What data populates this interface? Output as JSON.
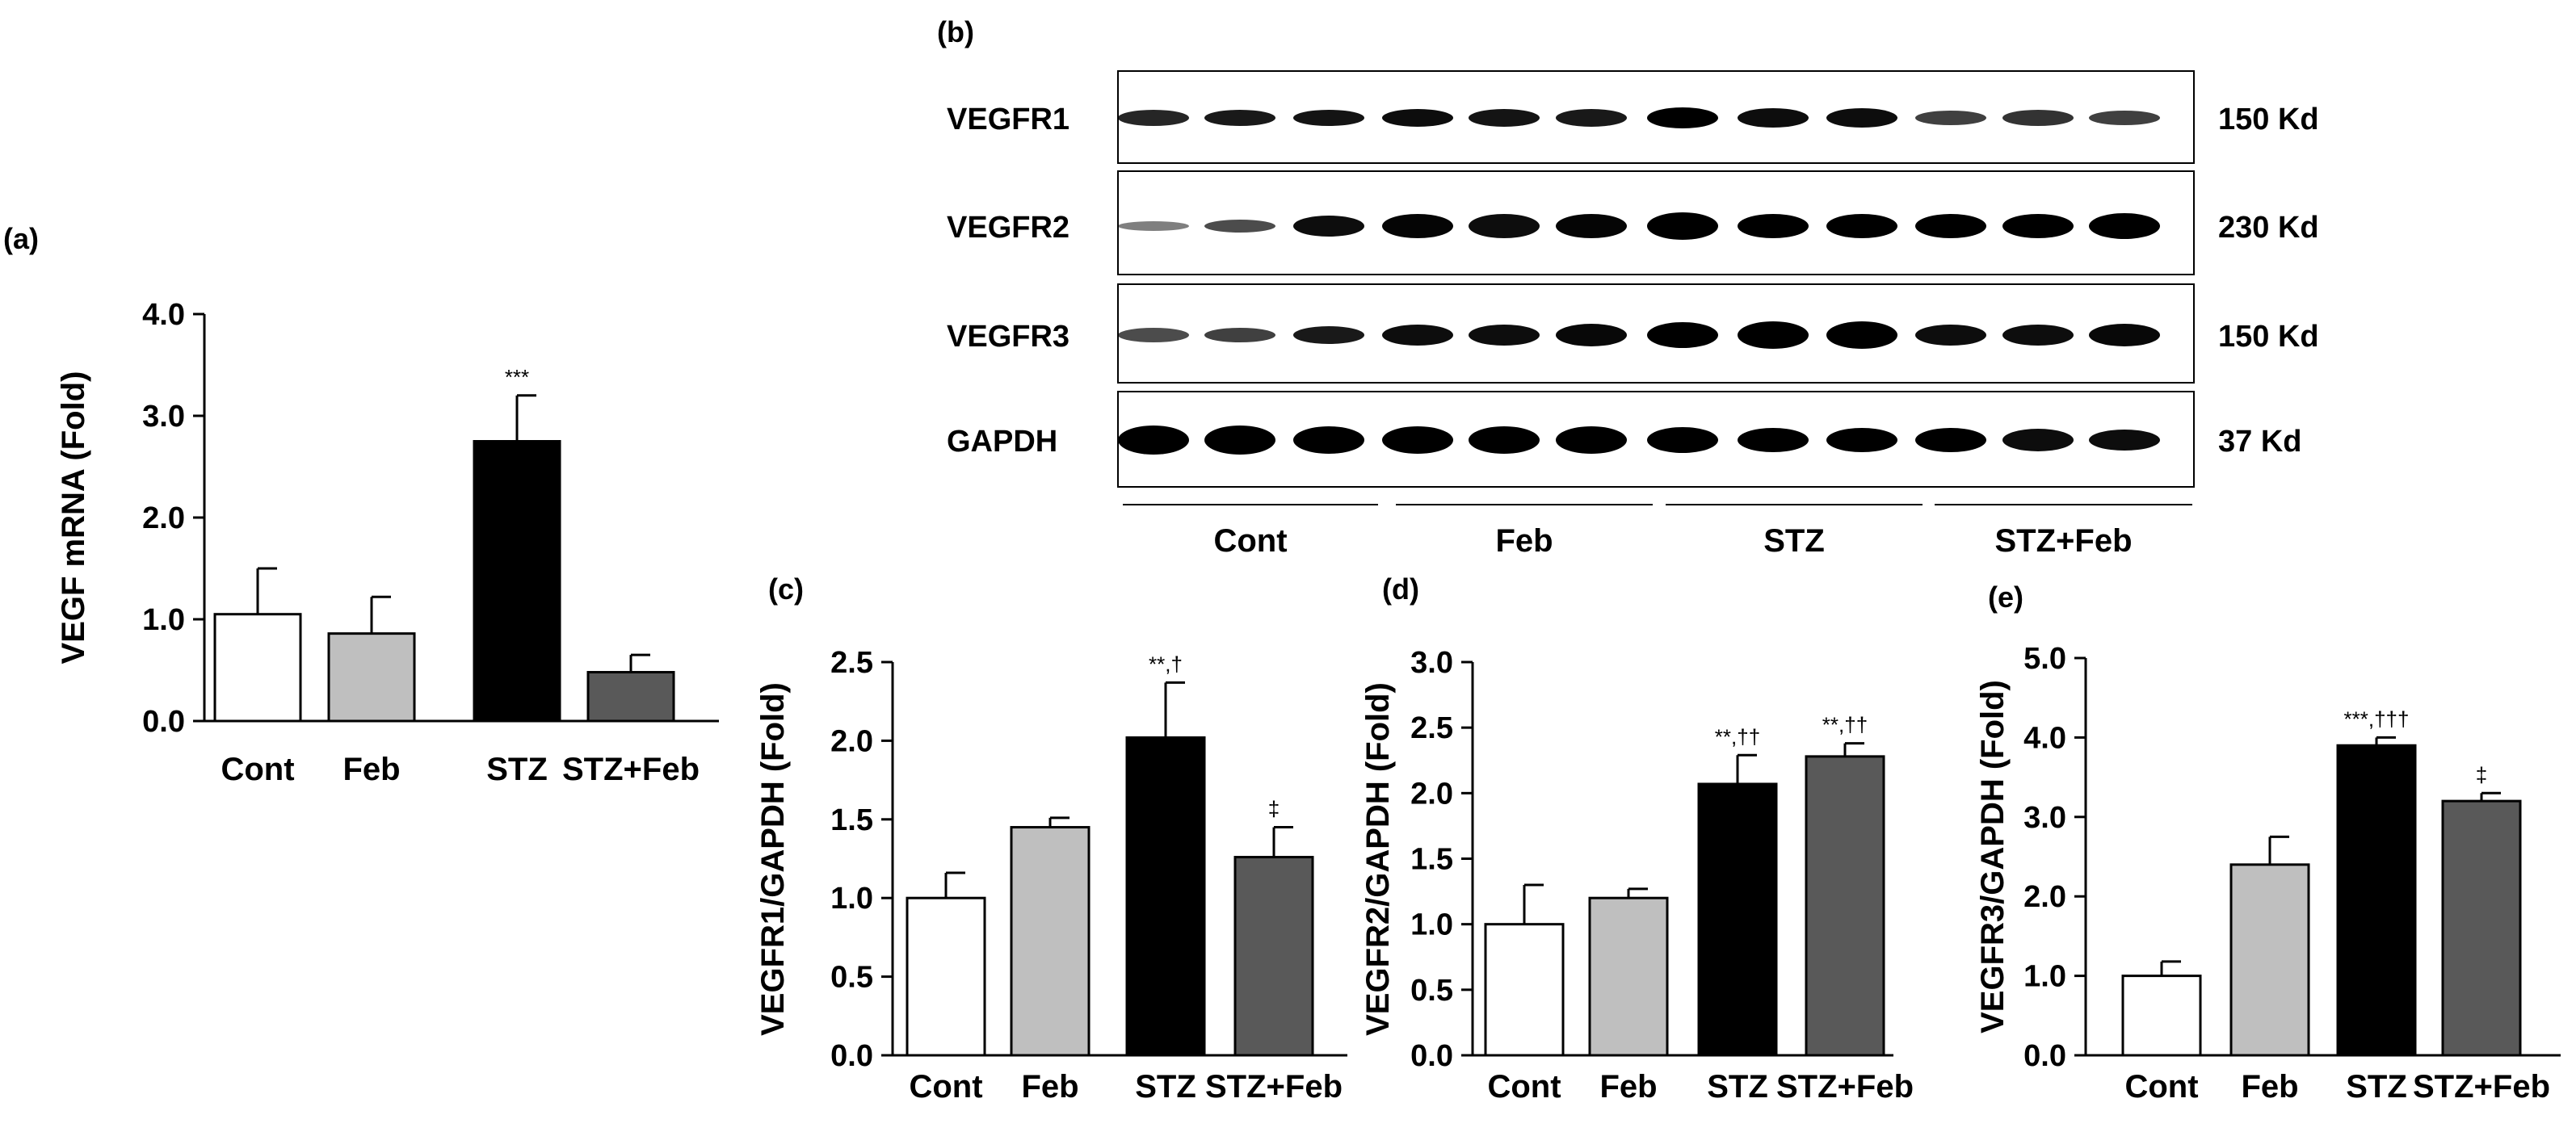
{
  "colors": {
    "cont": "#ffffff",
    "feb": "#bfbfbf",
    "stz": "#000000",
    "stzfeb": "#595959",
    "axis": "#000000"
  },
  "blot": {
    "letter": "(b)",
    "rows": [
      {
        "label": "VEGFR1",
        "kd": "150 Kd"
      },
      {
        "label": "VEGFR2",
        "kd": "230 Kd"
      },
      {
        "label": "VEGFR3",
        "kd": "150 Kd"
      },
      {
        "label": "GAPDH",
        "kd": "37 Kd"
      }
    ],
    "groups": [
      "Cont",
      "Feb",
      "STZ",
      "STZ+Feb"
    ]
  },
  "chart_data": [
    {
      "id": "a",
      "letter": "(a)",
      "type": "bar",
      "categories": [
        "Cont",
        "Feb",
        "STZ",
        "STZ+Feb"
      ],
      "values": [
        1.05,
        0.86,
        2.75,
        0.48
      ],
      "errors": [
        0.45,
        0.36,
        0.45,
        0.17
      ],
      "annotations": [
        "",
        "",
        "***",
        ""
      ],
      "ylabel": "VEGF mRNA (Fold)",
      "ylim": [
        0,
        4.0
      ],
      "ticks": [
        "0.0",
        "1.0",
        "2.0",
        "3.0",
        "4.0"
      ]
    },
    {
      "id": "c",
      "letter": "(c)",
      "type": "bar",
      "categories": [
        "Cont",
        "Feb",
        "STZ",
        "STZ+Feb"
      ],
      "values": [
        1.0,
        1.45,
        2.02,
        1.26
      ],
      "errors": [
        0.16,
        0.06,
        0.35,
        0.19
      ],
      "annotations": [
        "",
        "",
        "**,†",
        "‡"
      ],
      "ylabel": "VEGFR1/GAPDH (Fold)",
      "ylim": [
        0,
        2.5
      ],
      "ticks": [
        "0.0",
        "0.5",
        "1.0",
        "1.5",
        "2.0",
        "2.5"
      ]
    },
    {
      "id": "d",
      "letter": "(d)",
      "type": "bar",
      "categories": [
        "Cont",
        "Feb",
        "STZ",
        "STZ+Feb"
      ],
      "values": [
        1.0,
        1.2,
        2.07,
        2.28
      ],
      "errors": [
        0.3,
        0.07,
        0.22,
        0.1
      ],
      "annotations": [
        "",
        "",
        "**,††",
        "**,††"
      ],
      "ylabel": "VEGFR2/GAPDH (Fold)",
      "ylim": [
        0,
        3.0
      ],
      "ticks": [
        "0.0",
        "0.5",
        "1.0",
        "1.5",
        "2.0",
        "2.5",
        "3.0"
      ]
    },
    {
      "id": "e",
      "letter": "(e)",
      "type": "bar",
      "categories": [
        "Cont",
        "Feb",
        "STZ",
        "STZ+Feb"
      ],
      "values": [
        1.0,
        2.4,
        3.9,
        3.2
      ],
      "errors": [
        0.18,
        0.35,
        0.1,
        0.1
      ],
      "annotations": [
        "",
        "",
        "***,†††",
        "‡"
      ],
      "ylabel": "VEGFR3/GAPDH (Fold)",
      "ylim": [
        0,
        5.0
      ],
      "ticks": [
        "0.0",
        "1.0",
        "2.0",
        "3.0",
        "4.0",
        "5.0"
      ]
    }
  ]
}
